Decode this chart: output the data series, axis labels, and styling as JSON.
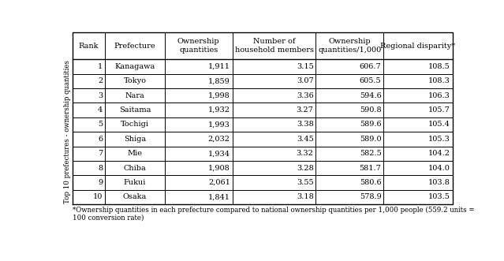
{
  "col_headers": [
    "Rank",
    "Prefecture",
    "Ownership\nquantities",
    "Number of\nhousehold members",
    "Ownership\nquantities/1,000",
    "Regional disparity*"
  ],
  "rows": [
    [
      "1",
      "Kanagawa",
      "1,911",
      "3.15",
      "606.7",
      "108.5"
    ],
    [
      "2",
      "Tokyo",
      "1,859",
      "3.07",
      "605.5",
      "108.3"
    ],
    [
      "3",
      "Nara",
      "1,998",
      "3.36",
      "594.6",
      "106.3"
    ],
    [
      "4",
      "Saitama",
      "1,932",
      "3.27",
      "590.8",
      "105.7"
    ],
    [
      "5",
      "Tochigi",
      "1,993",
      "3.38",
      "589.6",
      "105.4"
    ],
    [
      "6",
      "Shiga",
      "2,032",
      "3.45",
      "589.0",
      "105.3"
    ],
    [
      "7",
      "Mie",
      "1,934",
      "3.32",
      "582.5",
      "104.2"
    ],
    [
      "8",
      "Chiba",
      "1,908",
      "3.28",
      "581.7",
      "104.0"
    ],
    [
      "9",
      "Fukui",
      "2,061",
      "3.55",
      "580.6",
      "103.8"
    ],
    [
      "10",
      "Osaka",
      "1,841",
      "3.18",
      "578.9",
      "103.5"
    ]
  ],
  "row_label": "Top 10 prefectures - ownership quantities",
  "footnote": "*Ownership quantities in each prefecture compared to national ownership quantities per 1,000 people (559.2 units =\n100 conversion rate)",
  "bg_color": "#ffffff",
  "font_size": 7.0,
  "header_font_size": 7.0,
  "col_aligns": [
    "right",
    "center",
    "right",
    "right",
    "right",
    "right"
  ],
  "col_props": [
    0.072,
    0.13,
    0.148,
    0.182,
    0.148,
    0.15
  ]
}
